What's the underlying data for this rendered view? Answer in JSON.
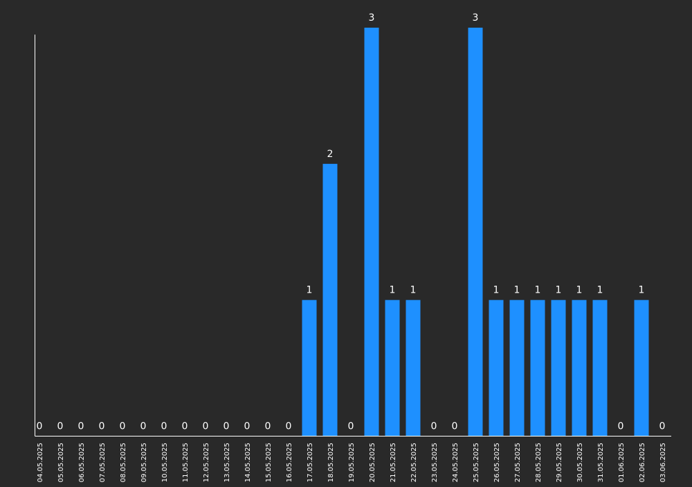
{
  "chart_data": {
    "type": "bar",
    "title": "",
    "xlabel": "",
    "ylabel": "",
    "ylim": [
      0,
      3
    ],
    "grid": false,
    "legend": "none",
    "bar_color": "#1e90ff",
    "background_color": "#292929",
    "axis_color": "#ffffff",
    "label_color": "#ffffff",
    "categories": [
      "04.05.2025",
      "05.05.2025",
      "06.05.2025",
      "07.05.2025",
      "08.05.2025",
      "09.05.2025",
      "10.05.2025",
      "11.05.2025",
      "12.05.2025",
      "13.05.2025",
      "14.05.2025",
      "15.05.2025",
      "16.05.2025",
      "17.05.2025",
      "18.05.2025",
      "19.05.2025",
      "20.05.2025",
      "21.05.2025",
      "22.05.2025",
      "23.05.2025",
      "24.05.2025",
      "25.05.2025",
      "26.05.2025",
      "27.05.2025",
      "28.05.2025",
      "29.05.2025",
      "30.05.2025",
      "31.05.2025",
      "01.06.2025",
      "02.06.2025",
      "03.06.2025"
    ],
    "values": [
      0,
      0,
      0,
      0,
      0,
      0,
      0,
      0,
      0,
      0,
      0,
      0,
      0,
      1,
      2,
      0,
      3,
      1,
      1,
      0,
      0,
      3,
      1,
      1,
      1,
      1,
      1,
      1,
      0,
      1,
      0
    ]
  }
}
